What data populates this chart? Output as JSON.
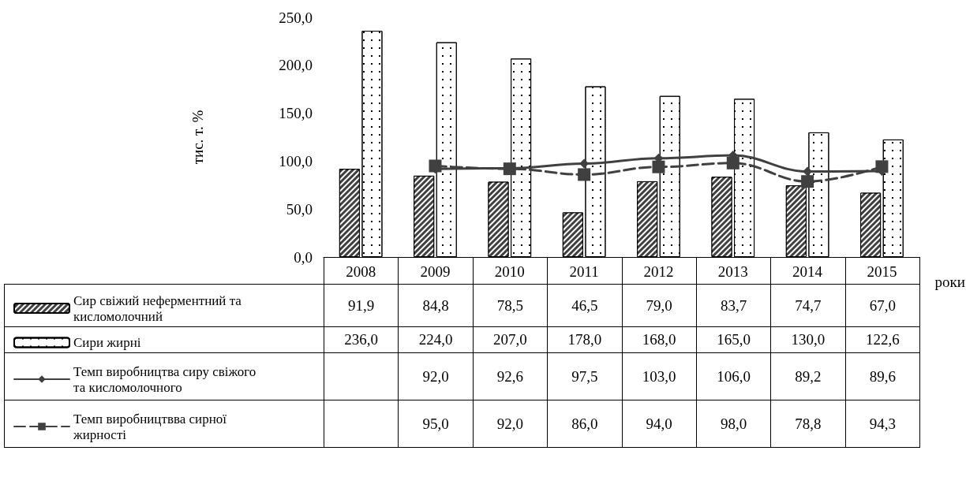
{
  "chart_data": {
    "type": "bar",
    "ylabel": "тис. т. %",
    "xlabel": "роки",
    "categories": [
      "2008",
      "2009",
      "2010",
      "2011",
      "2012",
      "2013",
      "2014",
      "2015"
    ],
    "series": [
      {
        "name": "Сир свіжий неферментний та кисломолочний",
        "color": "#404040",
        "values": [
          91.9,
          84.8,
          78.5,
          46.5,
          79.0,
          83.7,
          74.7,
          67.0
        ],
        "value_labels": [
          "91,9",
          "84,8",
          "78,5",
          "46,5",
          "79,0",
          "83,7",
          "74,7",
          "67,0"
        ]
      },
      {
        "name": "Сири жирні",
        "color": "#ffffff",
        "values": [
          236.0,
          224.0,
          207.0,
          178.0,
          168.0,
          165.0,
          130.0,
          122.6
        ],
        "value_labels": [
          "236,0",
          "224,0",
          "207,0",
          "178,0",
          "168,0",
          "165,0",
          "130,0",
          "122,6"
        ]
      },
      {
        "name": "Темп виробництва сиру свіжого та кисломолочного",
        "type": "line",
        "color": "#404040",
        "marker": "diamond",
        "line_style": "solid",
        "values": [
          null,
          92.0,
          92.6,
          97.5,
          103.0,
          106.0,
          89.2,
          89.6
        ],
        "value_labels": [
          null,
          "92,0",
          "92,6",
          "97,5",
          "103,0",
          "106,0",
          "89,2",
          "89,6"
        ]
      },
      {
        "name": "Темп виробництвва сирної жирності",
        "type": "line",
        "color": "#404040",
        "marker": "square",
        "line_style": "dashed",
        "values": [
          null,
          95.0,
          92.0,
          86.0,
          94.0,
          98.0,
          78.8,
          94.3
        ],
        "value_labels": [
          null,
          "95,0",
          "92,0",
          "86,0",
          "94,0",
          "98,0",
          "78,8",
          "94,3"
        ]
      }
    ],
    "ylim": [
      0,
      250
    ],
    "yticks": [
      {
        "value": 0,
        "label": "0,0"
      },
      {
        "value": 50,
        "label": "50,0"
      },
      {
        "value": 100,
        "label": "100,0"
      },
      {
        "value": 150,
        "label": "150,0"
      },
      {
        "value": 200,
        "label": "200,0"
      },
      {
        "value": 250,
        "label": "250,0"
      }
    ],
    "grid": false,
    "legend": "bottom left"
  }
}
